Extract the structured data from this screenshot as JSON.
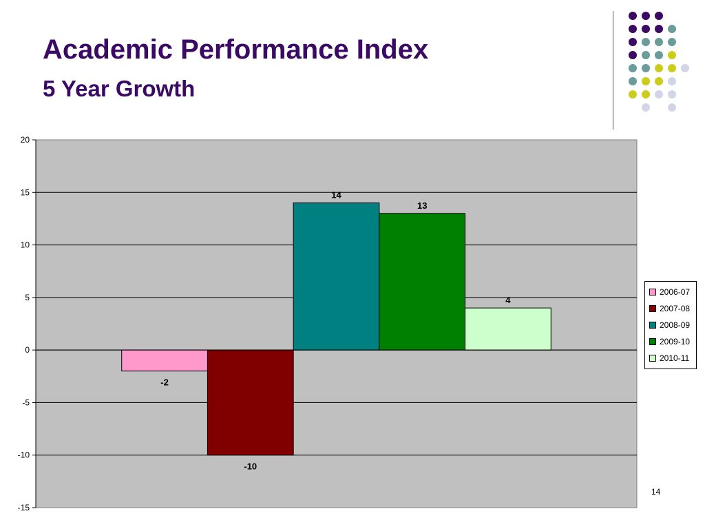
{
  "slide": {
    "title": "Academic Performance Index",
    "subtitle": "5 Year Growth",
    "page_number": "14"
  },
  "colors": {
    "title": "#3b0a64",
    "plot_background": "#c0c0c0",
    "decor_dots": [
      "#3b0a64",
      "#6a9c9a",
      "#cccc1a",
      "#d4d4e8"
    ]
  },
  "chart_data": {
    "type": "bar",
    "title": "",
    "xlabel": "",
    "ylabel": "",
    "ylim": [
      -15,
      20
    ],
    "yticks": [
      20,
      15,
      10,
      5,
      0,
      -5,
      -10,
      -15
    ],
    "grid": true,
    "legend_position": "right",
    "series": [
      {
        "name": "2006-07",
        "value": -2,
        "label": "-2",
        "color": "#ff99cc"
      },
      {
        "name": "2007-08",
        "value": -10,
        "label": "-10",
        "color": "#800000"
      },
      {
        "name": "2008-09",
        "value": 14,
        "label": "14",
        "color": "#008080"
      },
      {
        "name": "2009-10",
        "value": 13,
        "label": "13",
        "color": "#008000"
      },
      {
        "name": "2010-11",
        "value": 4,
        "label": "4",
        "color": "#ccffcc"
      }
    ]
  }
}
